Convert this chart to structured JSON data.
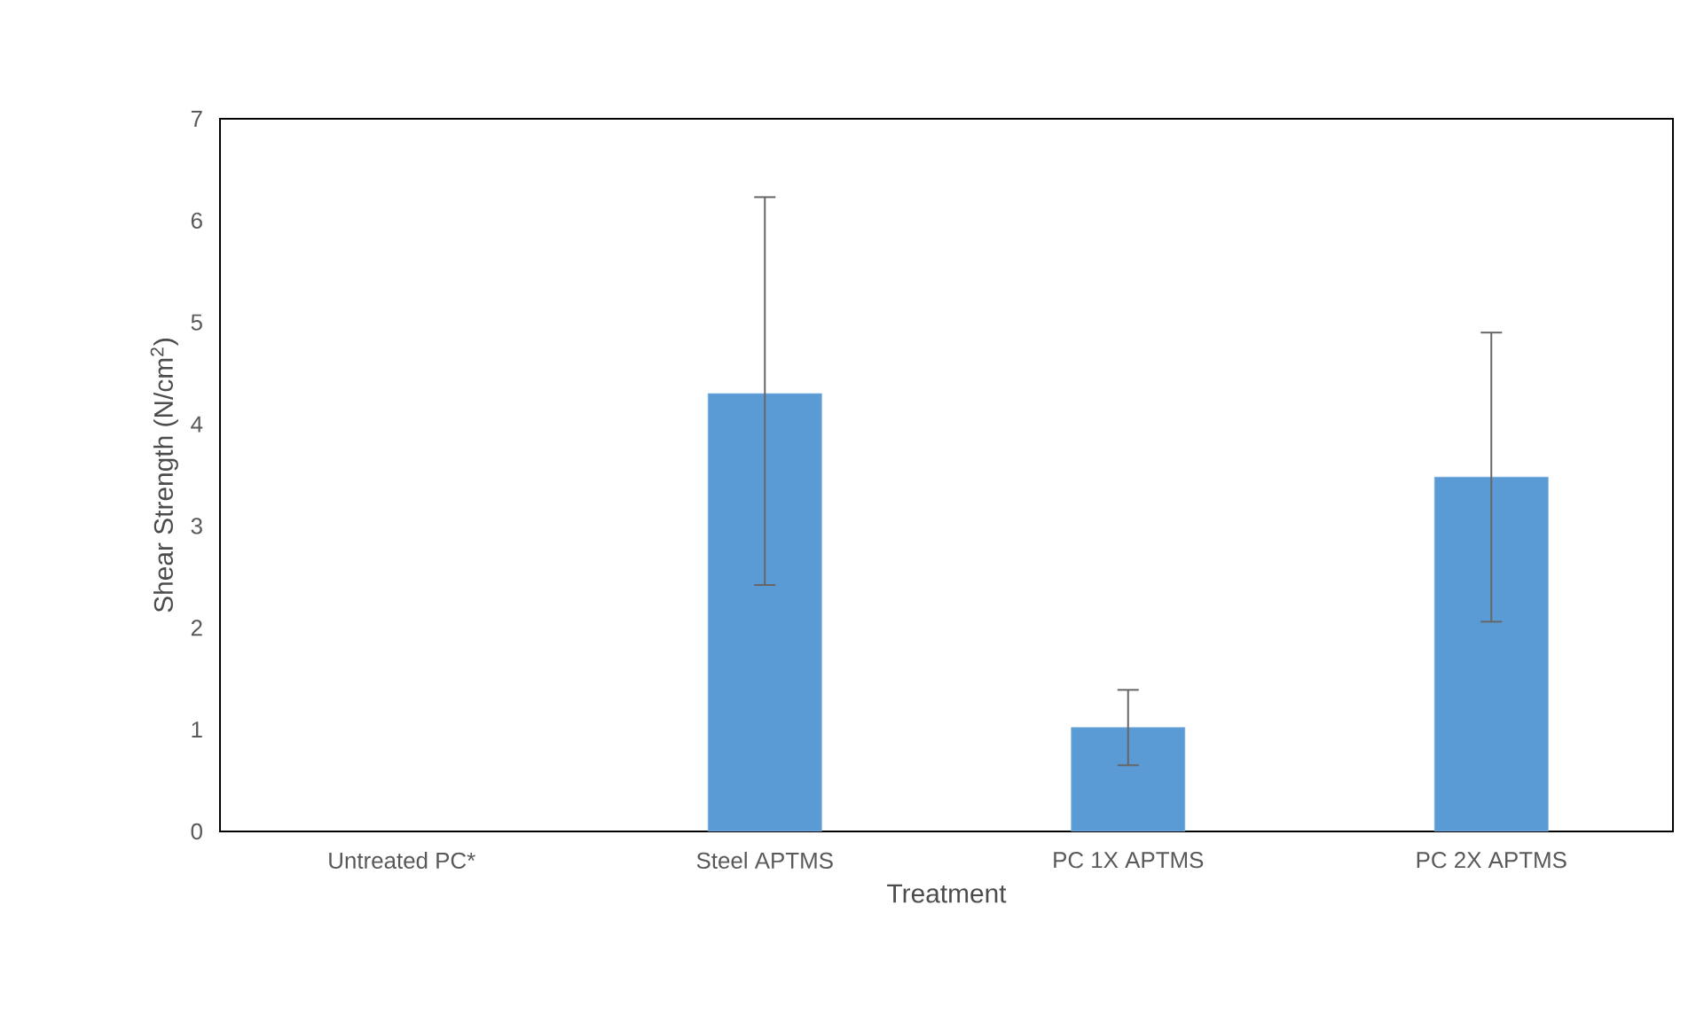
{
  "chart_data": {
    "type": "bar",
    "xlabel": "Treatment",
    "ylabel": "Shear Strength (N/cm$^{2}$)",
    "categories": [
      "Untreated PC*",
      "Steel APTMS",
      "PC 1X APTMS",
      "PC 2X APTMS"
    ],
    "values": [
      null,
      4.3,
      1.02,
      3.48
    ],
    "errors": [
      null,
      [
        2.42,
        6.23
      ],
      [
        0.65,
        1.39
      ],
      [
        2.06,
        4.9
      ]
    ],
    "color": "#5b9bd5",
    "ylim": [
      0,
      7
    ],
    "yticks": [
      0,
      1,
      2,
      3,
      4,
      5,
      6,
      7
    ]
  }
}
